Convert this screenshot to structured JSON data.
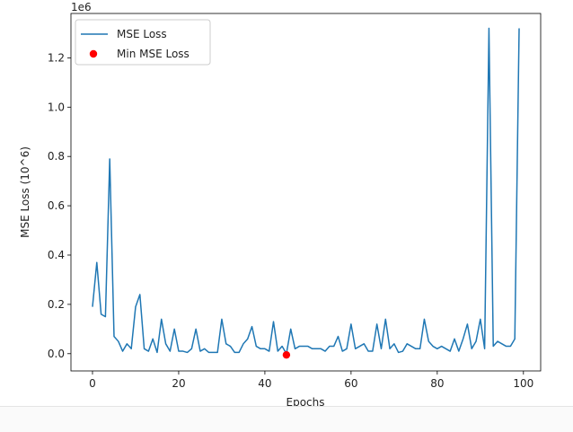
{
  "chart_data": {
    "type": "line",
    "xlabel": "Epochs",
    "ylabel": "MSE Loss (10^6)",
    "y_offset_text": "1e6",
    "xlim": [
      -5,
      104
    ],
    "ylim": [
      -0.07,
      1.38
    ],
    "xticks": [
      0,
      20,
      40,
      60,
      80,
      100
    ],
    "xtick_labels": [
      "0",
      "20",
      "40",
      "60",
      "80",
      "100"
    ],
    "yticks": [
      0.0,
      0.2,
      0.4,
      0.6,
      0.8,
      1.0,
      1.2
    ],
    "ytick_labels": [
      "0.0",
      "0.2",
      "0.4",
      "0.6",
      "0.8",
      "1.0",
      "1.2"
    ],
    "grid": false,
    "legend_position": "top-left",
    "series": [
      {
        "name": "MSE Loss",
        "color": "#1f77b4",
        "x": [
          0,
          1,
          2,
          3,
          4,
          5,
          6,
          7,
          8,
          9,
          10,
          11,
          12,
          13,
          14,
          15,
          16,
          17,
          18,
          19,
          20,
          21,
          22,
          23,
          24,
          25,
          26,
          27,
          28,
          29,
          30,
          31,
          32,
          33,
          34,
          35,
          36,
          37,
          38,
          39,
          40,
          41,
          42,
          43,
          44,
          45,
          46,
          47,
          48,
          49,
          50,
          51,
          52,
          53,
          54,
          55,
          56,
          57,
          58,
          59,
          60,
          61,
          62,
          63,
          64,
          65,
          66,
          67,
          68,
          69,
          70,
          71,
          72,
          73,
          74,
          75,
          76,
          77,
          78,
          79,
          80,
          81,
          82,
          83,
          84,
          85,
          86,
          87,
          88,
          89,
          90,
          91,
          92,
          93,
          94,
          95,
          96,
          97,
          98,
          99
        ],
        "values": [
          0.19,
          0.37,
          0.16,
          0.15,
          0.79,
          0.07,
          0.05,
          0.01,
          0.04,
          0.02,
          0.19,
          0.24,
          0.02,
          0.01,
          0.06,
          0.005,
          0.14,
          0.04,
          0.01,
          0.1,
          0.01,
          0.01,
          0.005,
          0.02,
          0.1,
          0.01,
          0.02,
          0.005,
          0.005,
          0.005,
          0.14,
          0.04,
          0.03,
          0.005,
          0.005,
          0.04,
          0.06,
          0.11,
          0.03,
          0.02,
          0.02,
          0.01,
          0.13,
          0.01,
          0.03,
          0.0,
          0.1,
          0.02,
          0.03,
          0.03,
          0.03,
          0.02,
          0.02,
          0.02,
          0.01,
          0.03,
          0.03,
          0.07,
          0.01,
          0.02,
          0.12,
          0.02,
          0.03,
          0.04,
          0.01,
          0.01,
          0.12,
          0.02,
          0.14,
          0.02,
          0.04,
          0.005,
          0.01,
          0.04,
          0.03,
          0.02,
          0.02,
          0.14,
          0.05,
          0.03,
          0.02,
          0.03,
          0.02,
          0.01,
          0.06,
          0.01,
          0.06,
          0.12,
          0.02,
          0.05,
          0.14,
          0.02,
          1.32,
          0.03,
          0.05,
          0.04,
          0.03,
          0.03,
          0.06,
          1.32
        ]
      },
      {
        "name": "Min MSE Loss",
        "type": "scatter",
        "color": "#ff0000",
        "x": [
          45
        ],
        "values": [
          -0.005
        ]
      }
    ]
  }
}
